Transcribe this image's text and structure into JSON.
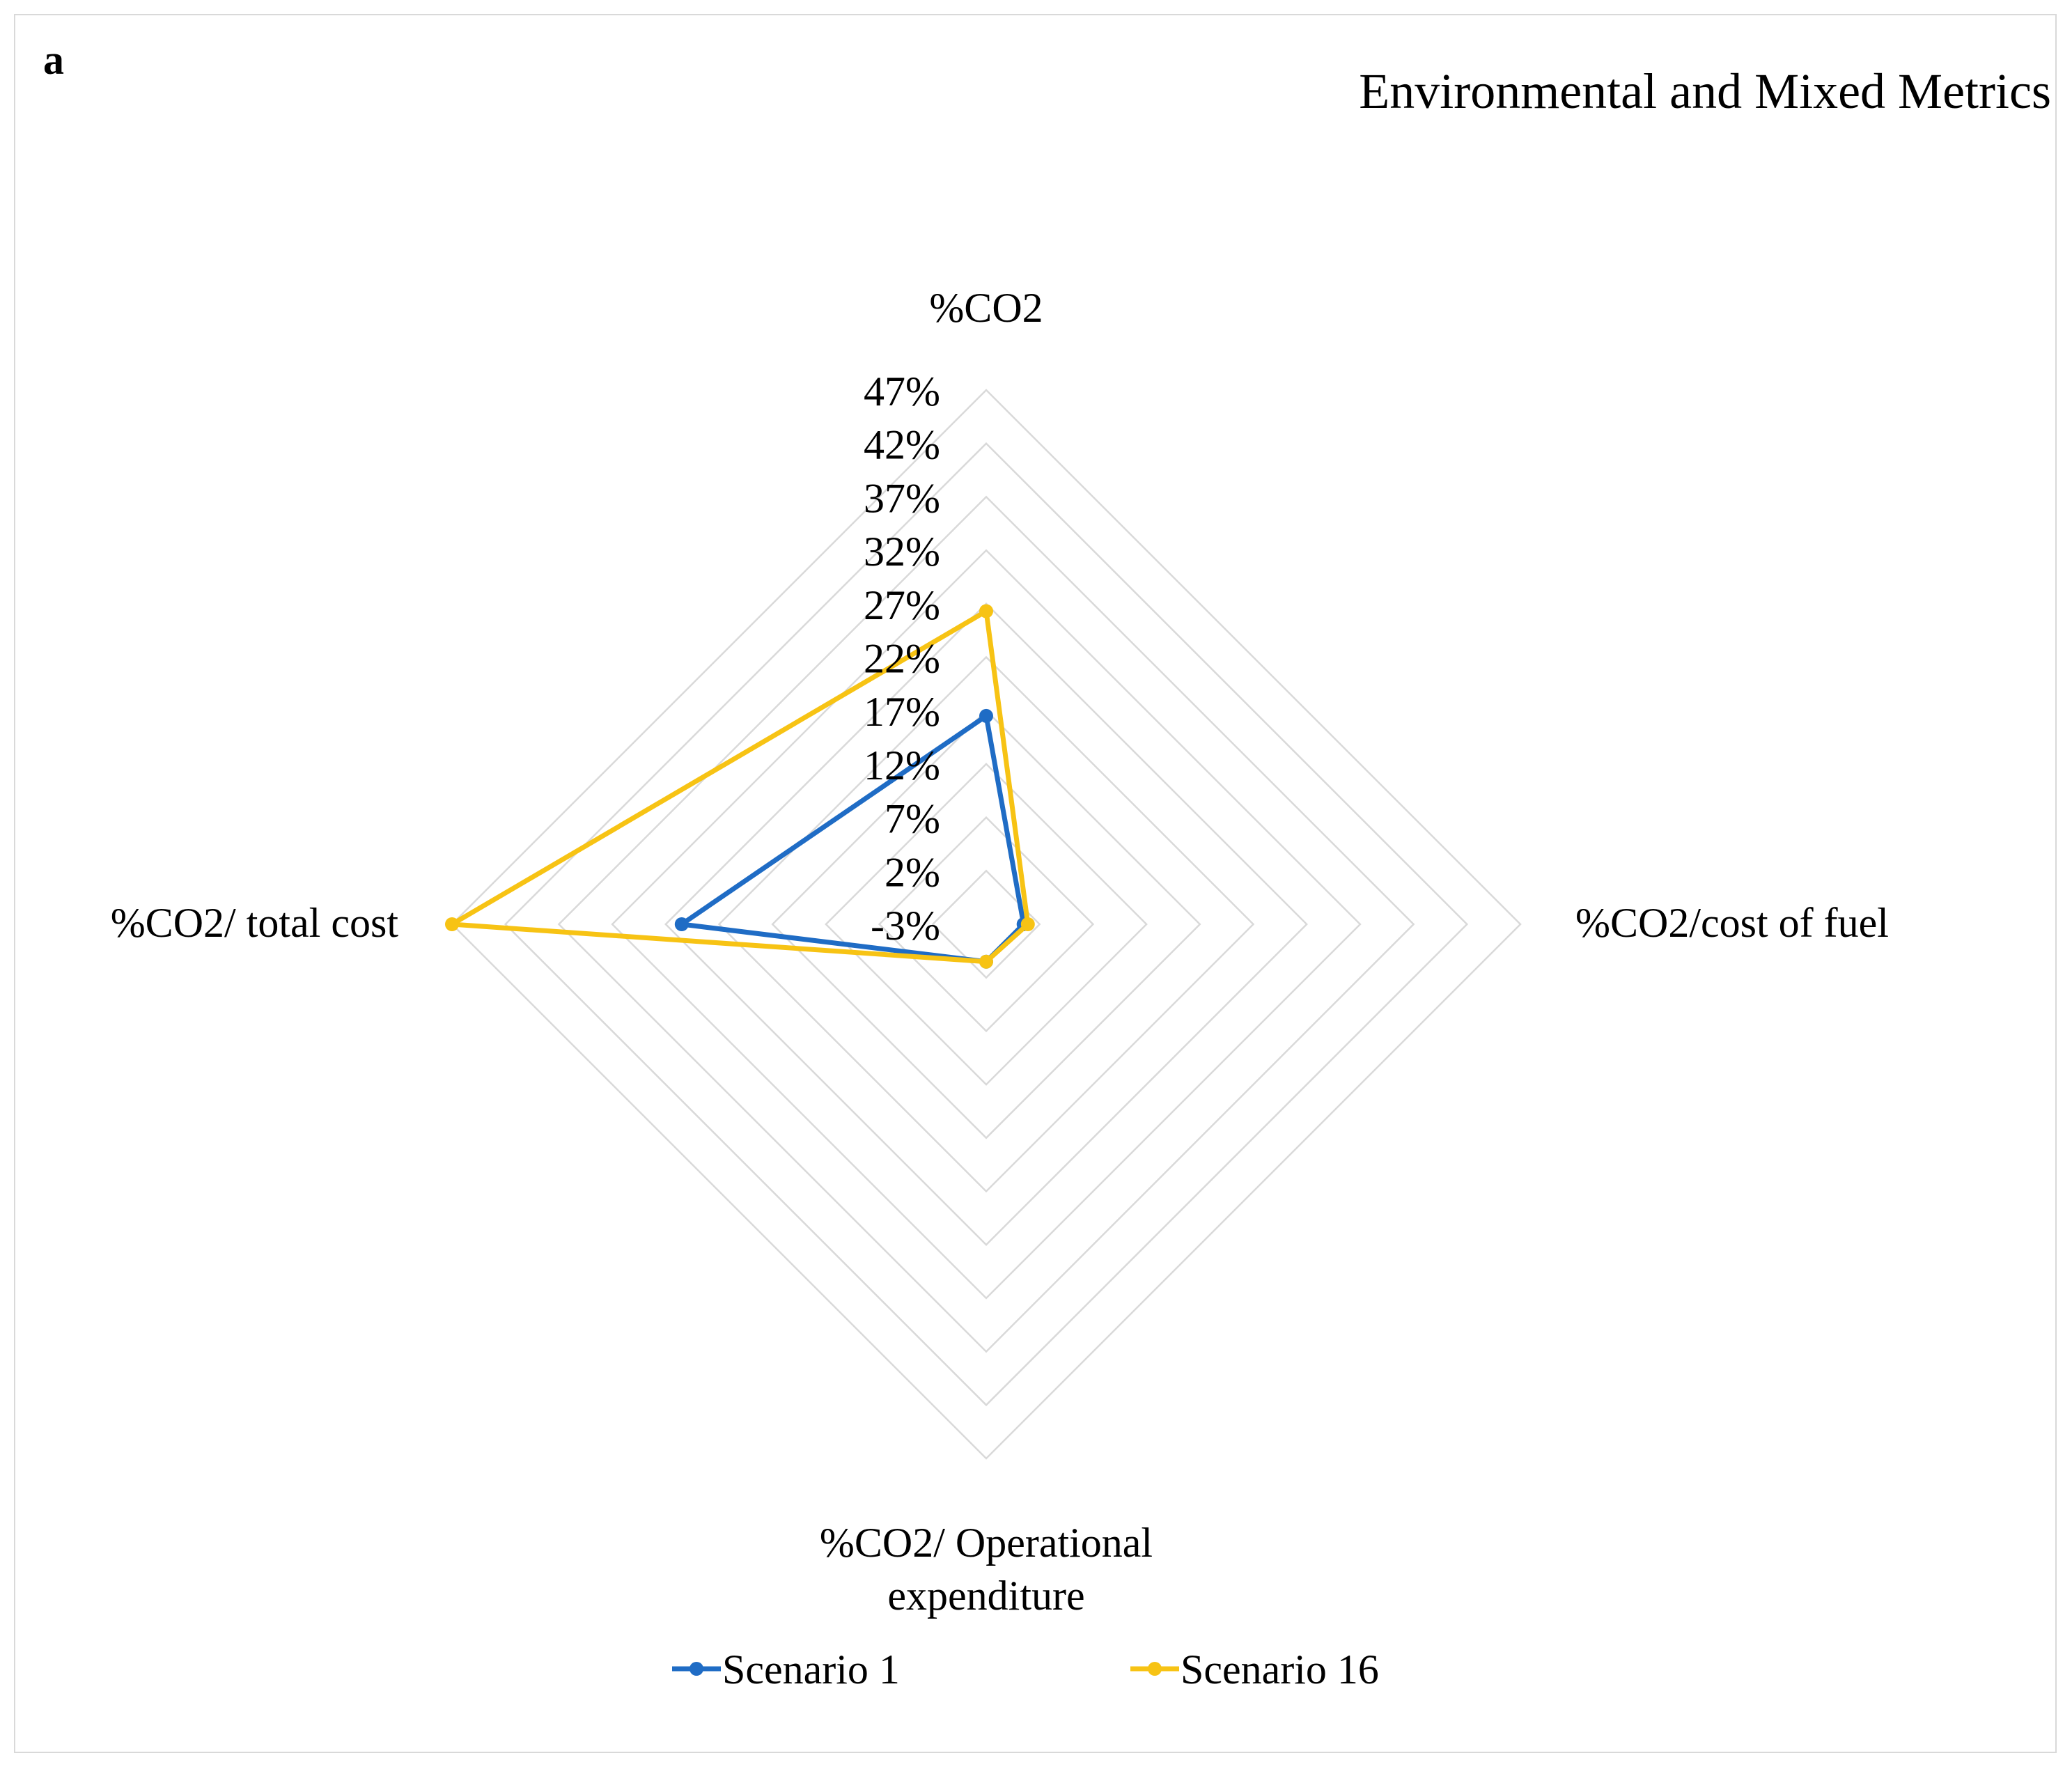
{
  "panel_label": "a",
  "chart_data": {
    "type": "radar",
    "title": "Environmental and Mixed Metrics",
    "categories": [
      "%CO2",
      "%CO2/cost of fuel",
      "%CO2/ Operational expenditure",
      "%CO2/ total cost"
    ],
    "category_lines": [
      [
        "%CO2"
      ],
      [
        "%CO2/cost of fuel"
      ],
      [
        "%CO2/ Operational",
        "expenditure"
      ],
      [
        "%CO2/ total cost"
      ]
    ],
    "tick_values": [
      -3,
      2,
      7,
      12,
      17,
      22,
      27,
      32,
      37,
      42,
      47
    ],
    "tick_labels": [
      "-3%",
      "2%",
      "7%",
      "12%",
      "17%",
      "22%",
      "27%",
      "32%",
      "37%",
      "42%",
      "47%"
    ],
    "range": [
      -3,
      47
    ],
    "series": [
      {
        "name": "Scenario 1",
        "color": "#1f6cc5",
        "values": [
          16.5,
          0.5,
          0.5,
          25.5
        ]
      },
      {
        "name": "Scenario 16",
        "color": "#f7c314",
        "values": [
          26.3,
          0.9,
          0.5,
          47.0
        ]
      }
    ],
    "grid_color": "#d9d9d9",
    "legend_position": "bottom"
  }
}
